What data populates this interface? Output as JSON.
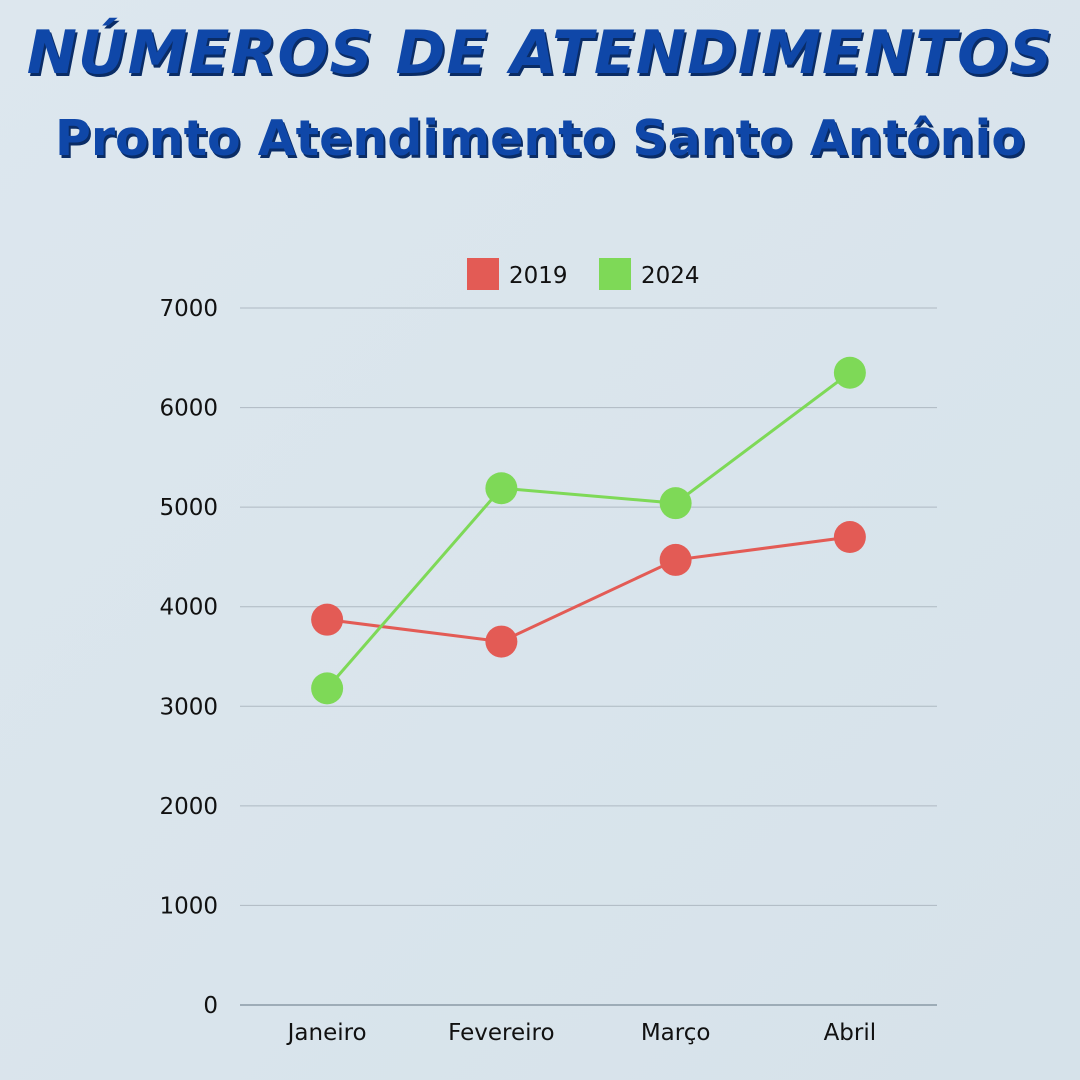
{
  "title": "NÚMEROS DE ATENDIMENTOS",
  "subtitle": "Pronto Atendimento Santo Antônio",
  "chart_data": {
    "type": "line",
    "categories": [
      "Janeiro",
      "Fevereiro",
      "Março",
      "Abril"
    ],
    "series": [
      {
        "name": "2019",
        "color": "#e35b55",
        "values": [
          3870,
          3650,
          4470,
          4700
        ]
      },
      {
        "name": "2024",
        "color": "#7ed957",
        "values": [
          3180,
          5190,
          5040,
          6350
        ]
      }
    ],
    "ylim": [
      0,
      7000
    ],
    "yticks": [
      "0",
      "1000",
      "2000",
      "3000",
      "4000",
      "5000",
      "6000",
      "7000"
    ],
    "grid": true,
    "legend": "top"
  }
}
